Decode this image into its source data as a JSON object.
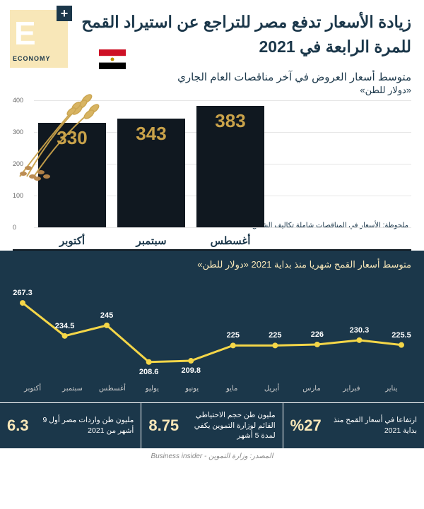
{
  "header": {
    "title": "زيادة الأسعار تدفع مصر للتراجع عن استيراد القمح للمرة الرابعة في 2021",
    "logo_text": "E",
    "logo_plus": "+",
    "logo_word": "ECONOMY"
  },
  "bar_chart": {
    "type": "bar",
    "subtitle": "متوسط أسعار العروض في آخر مناقصات العام الجاري",
    "unit": "«دولار للطن»",
    "note": "ملحوظة: الأسعار في المناقصات شاملة تكاليف الشحن",
    "categories": [
      "أغسطس",
      "سبتمبر",
      "أكتوبر"
    ],
    "values": [
      383,
      343,
      330
    ],
    "ylim": [
      0,
      400
    ],
    "ytick_step": 100,
    "bar_color": "#101820",
    "value_color": "#c9a24a",
    "value_fontsize": 26,
    "label_fontsize": 15,
    "grid_color": "#e6e6e6",
    "background_color": "#ffffff"
  },
  "line_chart": {
    "type": "line",
    "subtitle": "متوسط أسعار القمح شهريا منذ بداية 2021  «دولار للطن»",
    "categories": [
      "يناير",
      "فبراير",
      "مارس",
      "أبريل",
      "مايو",
      "يونيو",
      "يوليو",
      "أغسطس",
      "سبتمبر",
      "أكتوبر"
    ],
    "values": [
      225.5,
      230.3,
      226,
      225,
      225,
      209.8,
      208.6,
      245,
      234.5,
      267.3
    ],
    "ylim": [
      200,
      280
    ],
    "line_color": "#f4d648",
    "line_width": 3,
    "marker_color": "#f4d648",
    "marker_size": 4,
    "background_color": "#1b374a",
    "label_color": "#ffffff",
    "label_fontsize": 11
  },
  "stats": [
    {
      "value": "%27",
      "text": "ارتفاعا في أسعار القمح منذ بداية 2021"
    },
    {
      "value": "8.75",
      "text": "مليون طن حجم الاحتياطي القائم لوزارة التموين يكفي لمدة 5 أشهر"
    },
    {
      "value": "6.3",
      "text": "مليون طن واردات مصر أول 9 أشهر من 2021"
    }
  ],
  "source": "المصدر: وزارة التموين - Business insider",
  "colors": {
    "dark_blue": "#1b374a",
    "cream": "#f8e7b8",
    "gold": "#c9a24a",
    "black_bar": "#101820",
    "yellow_line": "#f4d648"
  }
}
